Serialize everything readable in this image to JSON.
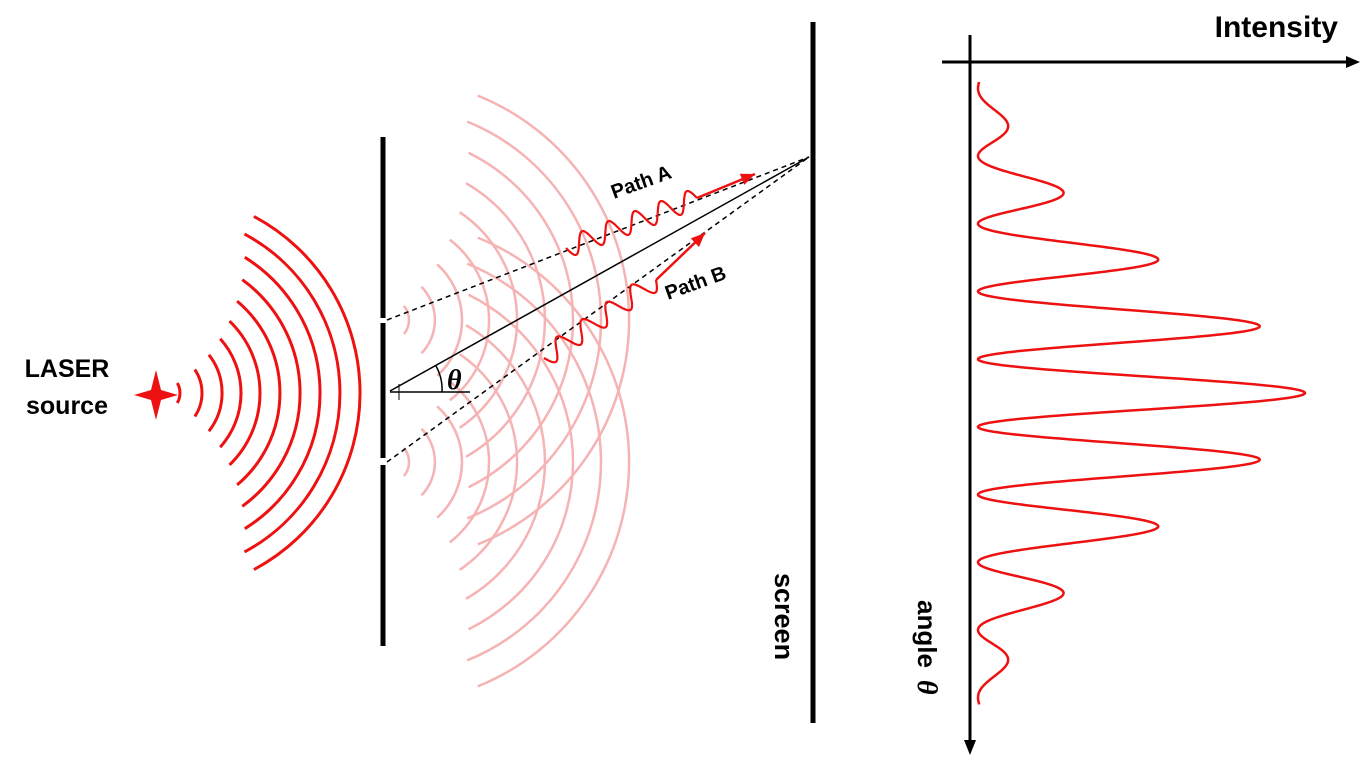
{
  "labels": {
    "laser_line1": "LASER",
    "laser_line2": "source",
    "path_a": "Path A",
    "path_b": "Path B",
    "theta": "θ",
    "screen": "screen",
    "intensity": "Intensity",
    "angle_word": "angle",
    "angle_symbol": "θ"
  },
  "colors": {
    "wave": "#ee1111",
    "wave_faint": "#f6b3b3",
    "ink": "#000000",
    "accent": "#e41010"
  },
  "intensity_pattern": {
    "fringe_count": 10,
    "envelope": "sinc-squared",
    "peak_fraction": 1.0
  }
}
